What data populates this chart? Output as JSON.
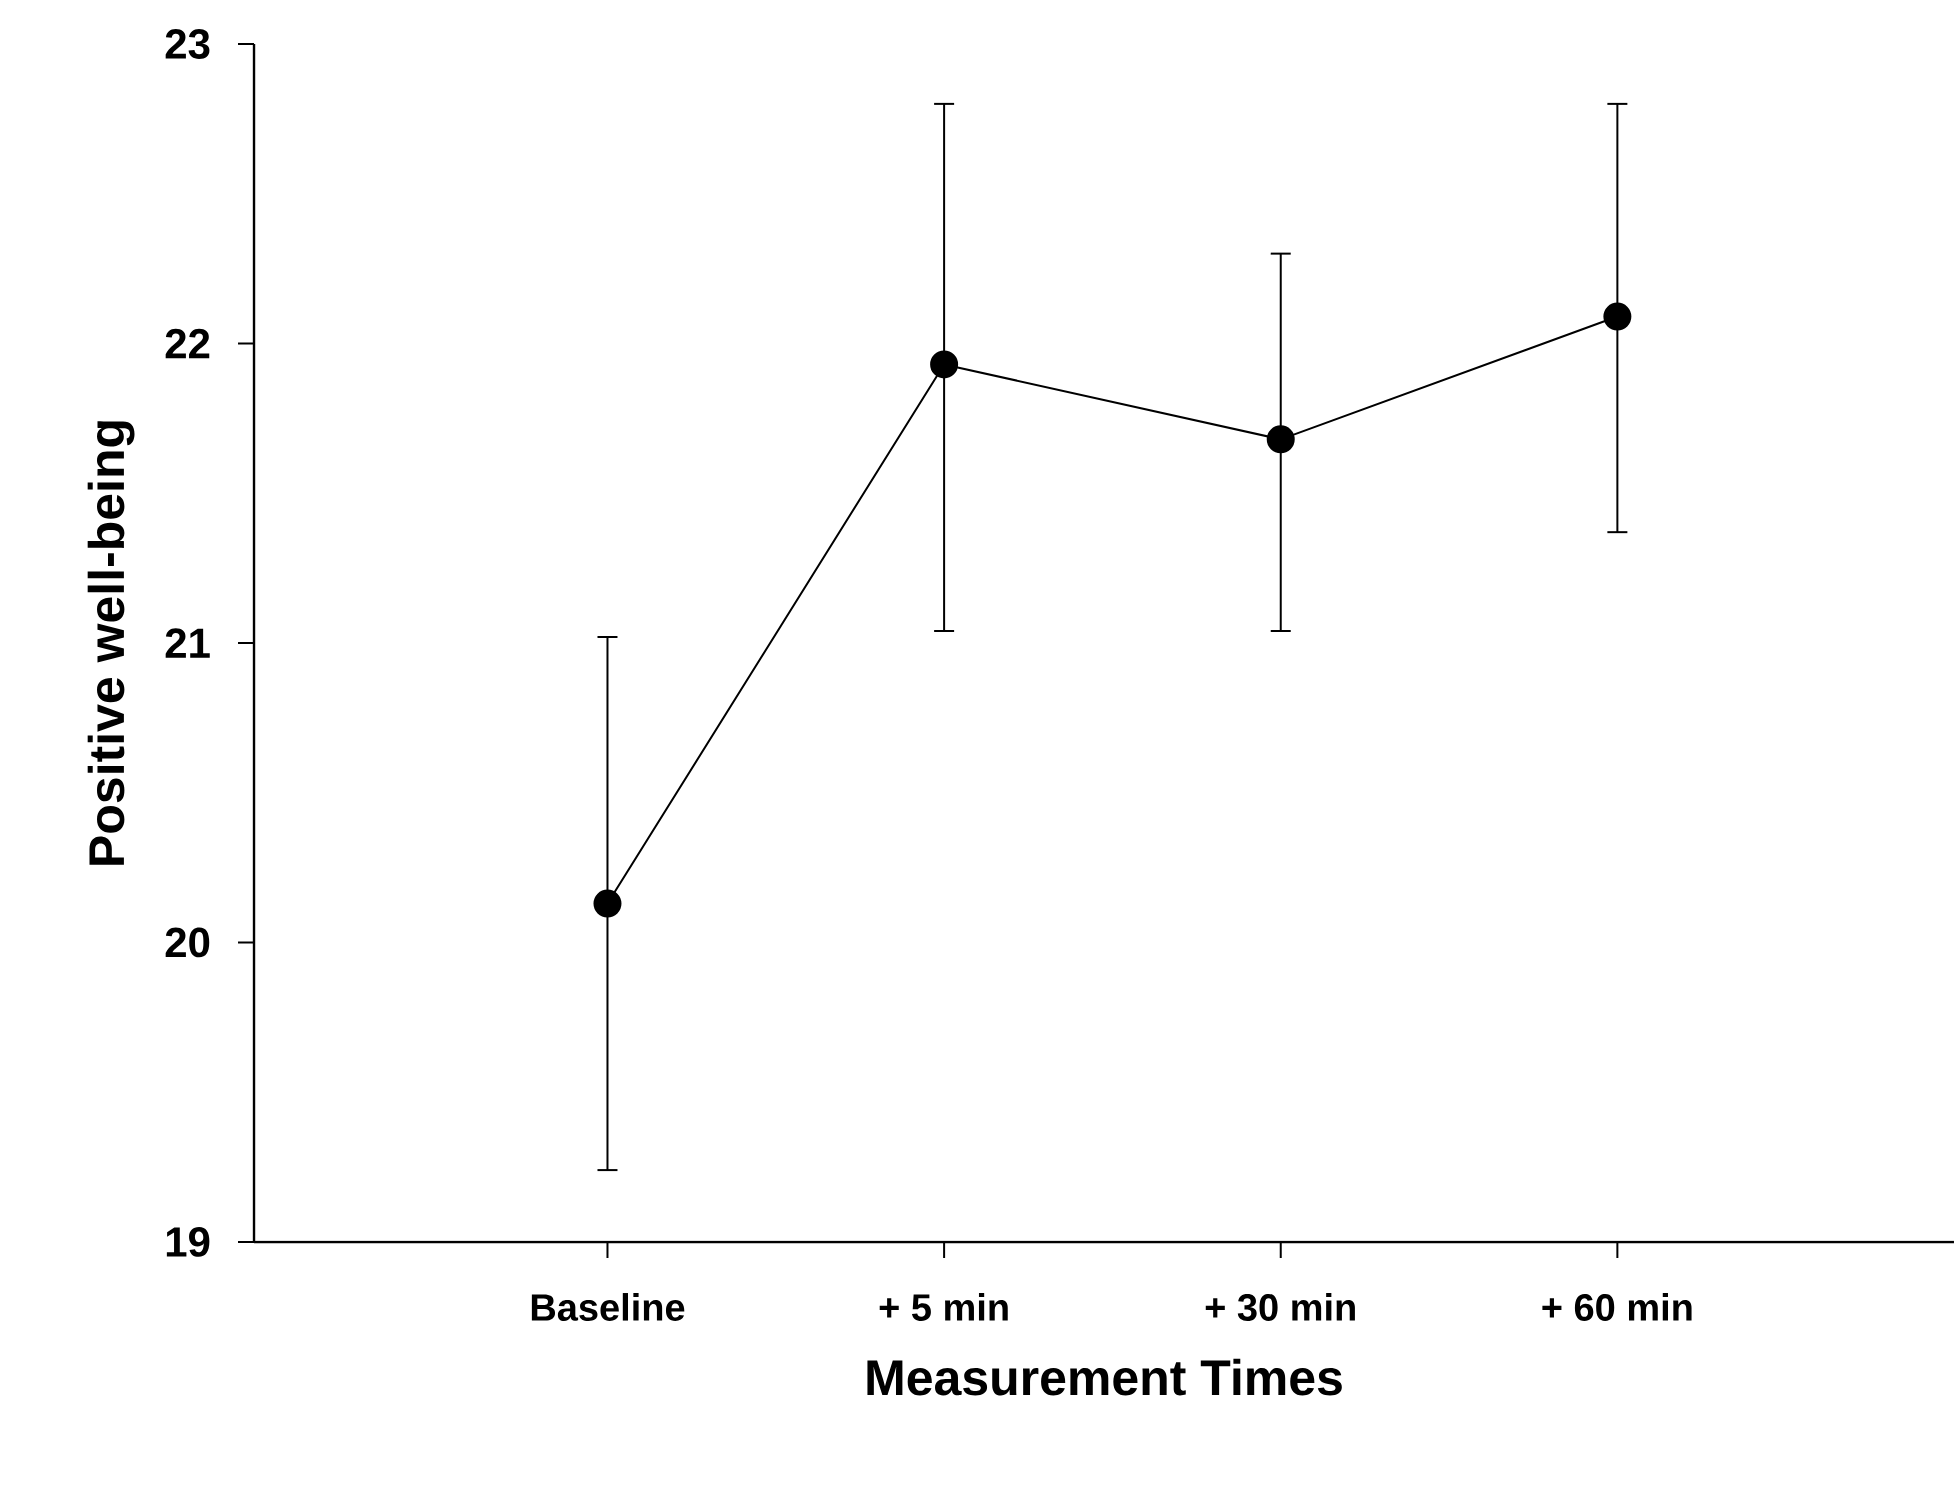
{
  "chart_data": {
    "type": "line",
    "xlabel": "Measurement Times",
    "ylabel": "Positive well-being",
    "categories": [
      "Baseline",
      "+ 5 min",
      "+ 30 min",
      "+ 60 min"
    ],
    "series": [
      {
        "color": "#000000",
        "values": [
          20.13,
          21.93,
          21.68,
          22.09
        ],
        "errors": [
          [
            19.24,
            21.02
          ],
          [
            21.04,
            22.8
          ],
          [
            21.04,
            22.3
          ],
          [
            21.37,
            22.8
          ]
        ]
      }
    ],
    "ylim": [
      19,
      23
    ],
    "yticks": [
      19,
      20,
      21,
      22,
      23
    ],
    "marker": "circle",
    "line_style": "solid"
  }
}
